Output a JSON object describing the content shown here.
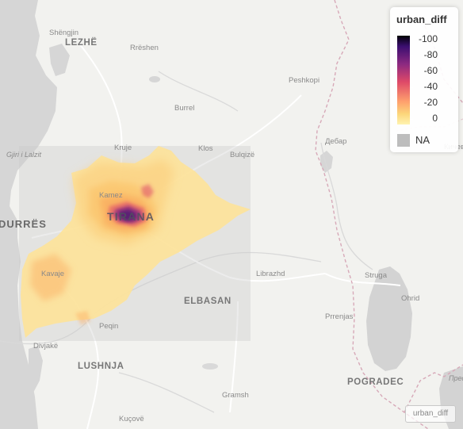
{
  "legend": {
    "title": "urban_diff",
    "ticks": [
      "-100",
      "-80",
      "-60",
      "-40",
      "-20",
      "0"
    ],
    "na_label": "NA",
    "colors": [
      "#000004",
      "#3b0f70",
      "#8c2981",
      "#de4968",
      "#fe9f6d",
      "#fcd67a",
      "#fff3b0"
    ],
    "na_color": "#bdbdbd"
  },
  "layer_control": {
    "label": "urban_diff"
  },
  "places": {
    "shengjin": "Shëngjin",
    "lezhe": "LEZHË",
    "rreshen": "Rrëshen",
    "peshkopi": "Peshkopi",
    "burrel": "Burrel",
    "gjiri": "Gjiri i Lalzit",
    "kruje": "Kruje",
    "klos": "Klos",
    "bulqize": "Bulqizë",
    "debar": "Дебар",
    "kicevo": "Кичево",
    "durres": "DURRËS",
    "kamez": "Kamez",
    "tirana": "TIRANA",
    "kavaje": "Kavaje",
    "librazhd": "Librazhd",
    "struga": "Struga",
    "ohrid": "Ohrid",
    "elbasan": "ELBASAN",
    "prrenjas": "Prrenjas",
    "peqin": "Peqin",
    "divjake": "Divjakë",
    "lushnja": "LUSHNJA",
    "pogradec": "POGRADEC",
    "gramsh": "Gramsh",
    "kucove": "Kuçovë",
    "prespa": "Преспа"
  }
}
